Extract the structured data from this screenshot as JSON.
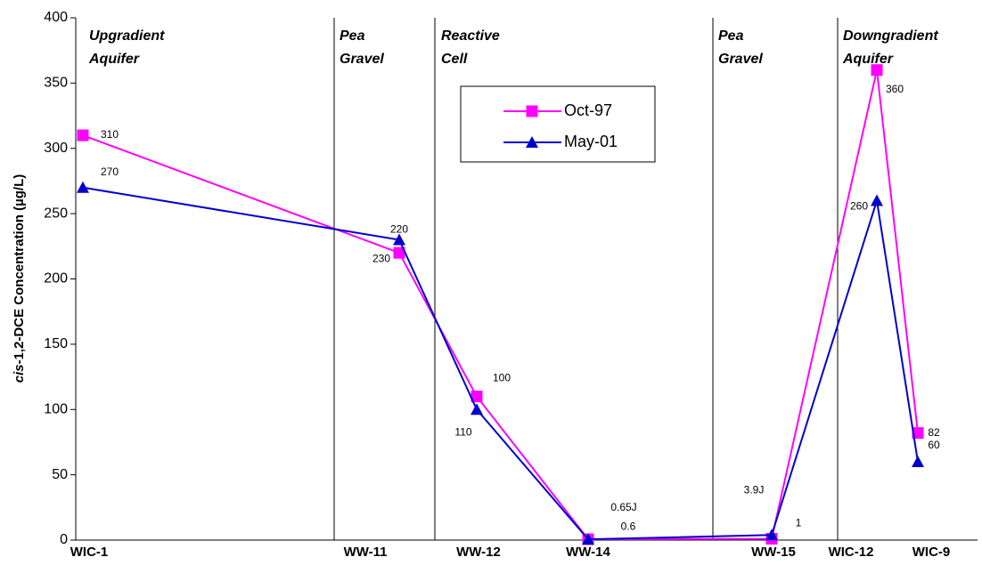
{
  "chart_data": {
    "type": "line",
    "ylabel_italic": "cis",
    "ylabel": "-1,2-DCE Concentration (µg/L)",
    "categories": [
      "WIC-1",
      "WW-11",
      "WW-12",
      "WW-14",
      "WW-15",
      "WIC-12",
      "WIC-9"
    ],
    "zones": [
      [
        "Upgradient",
        "Aquifer"
      ],
      [
        "Pea",
        "Gravel"
      ],
      [
        "Reactive",
        "Cell"
      ],
      [
        "Pea",
        "Gravel"
      ],
      [
        "Downgradient",
        "Aquifer"
      ]
    ],
    "series": [
      {
        "name": "Oct-97",
        "color": "#ff00ff",
        "marker": "square",
        "values": [
          310,
          220,
          110,
          0.65,
          1,
          360,
          82
        ],
        "value_labels": [
          "310",
          "220",
          "110",
          "0.65J",
          "1",
          "360",
          "82"
        ]
      },
      {
        "name": "May-01",
        "color": "#0000cc",
        "marker": "triangle",
        "values": [
          270,
          230,
          100,
          0.6,
          3.9,
          260,
          60
        ],
        "value_labels": [
          "270",
          "230",
          "100",
          "0.6",
          "3.9J",
          "260",
          "60"
        ]
      }
    ],
    "ylim": [
      0,
      400
    ],
    "yticks": [
      0,
      50,
      100,
      150,
      200,
      250,
      300,
      350,
      400
    ],
    "legend": "top-center"
  }
}
